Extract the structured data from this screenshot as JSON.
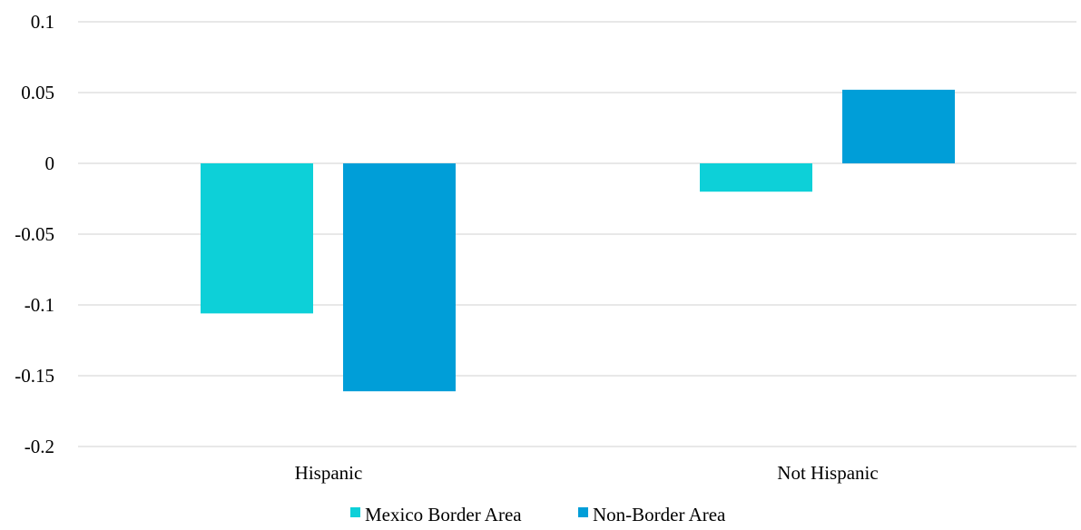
{
  "chart_data": {
    "type": "bar",
    "categories": [
      "Hispanic",
      "Not Hispanic"
    ],
    "series": [
      {
        "name": "Mexico Border Area",
        "values": [
          -0.106,
          -0.02
        ],
        "color": "#0dd0d8"
      },
      {
        "name": "Non-Border Area",
        "values": [
          -0.161,
          0.052
        ],
        "color": "#009ed8"
      }
    ],
    "yticks": [
      "0.1",
      "0.05",
      "0",
      "-0.05",
      "-0.1",
      "-0.15",
      "-0.2"
    ],
    "ylim": [
      -0.2,
      0.1
    ],
    "grid": true,
    "legend_position": "bottom"
  }
}
